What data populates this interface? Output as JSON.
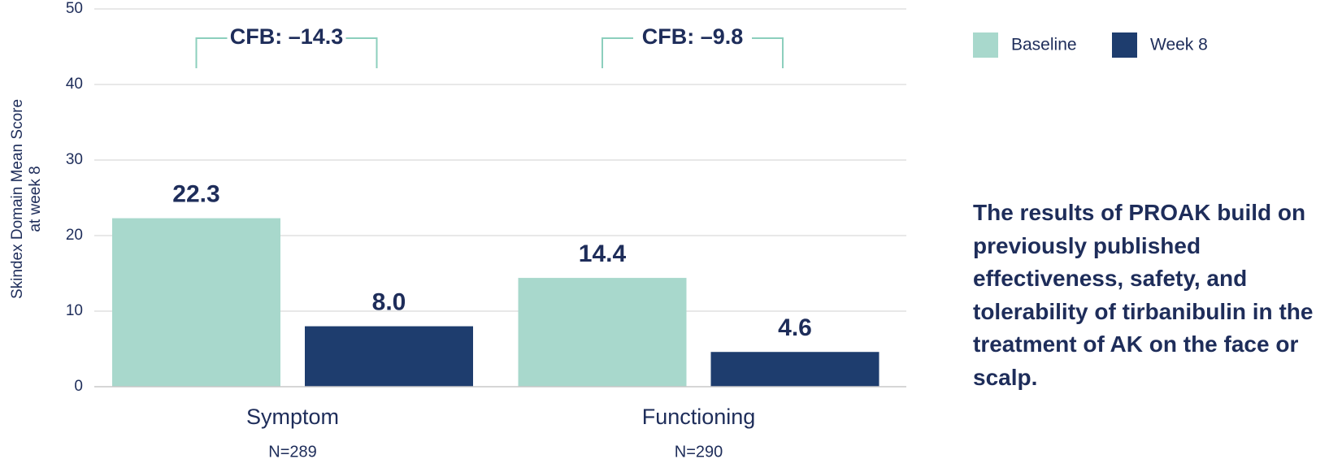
{
  "chart_data": {
    "type": "bar",
    "ylabel": [
      "Skindex Domain Mean Score",
      "at week 8"
    ],
    "categories": [
      "Symptom",
      "Functioning"
    ],
    "category_notes": [
      "N=289",
      "N=290"
    ],
    "series": [
      {
        "name": "Baseline",
        "color": "#a8d8cc",
        "values": [
          22.3,
          14.4
        ],
        "value_labels": [
          "22.3",
          "14.4"
        ]
      },
      {
        "name": "Week 8",
        "color": "#1e3d6e",
        "values": [
          8,
          4.6
        ],
        "value_labels": [
          "8.0",
          "4.6"
        ]
      }
    ],
    "annotations": [
      "CFB: –14.3",
      "CFB: –9.8"
    ],
    "ylim": [
      0,
      50
    ],
    "yticks": [
      0,
      10,
      20,
      30,
      40,
      50
    ],
    "grid": true,
    "legend": "top-right"
  },
  "side_text": "The results of PROAK build on previously published effectiveness, safety, and tolerability of tirbanibulin in the treatment of AK on the face or scalp."
}
